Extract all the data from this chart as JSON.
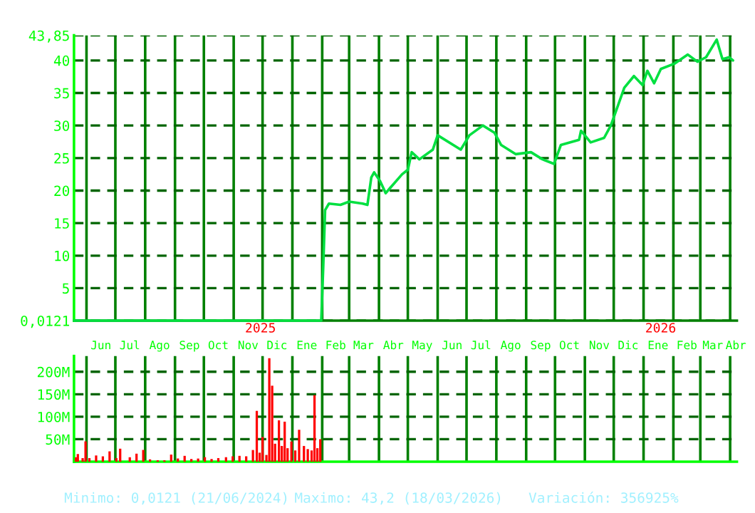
{
  "chart_data": [
    {
      "type": "line",
      "grid": true,
      "xlim": [
        "2024-05-19",
        "2026-04-08"
      ],
      "ylim": [
        0.0121,
        43.85
      ],
      "yticks": [
        {
          "value": 0.0121,
          "label": "0,0121"
        },
        5,
        10,
        15,
        20,
        25,
        30,
        35,
        40,
        {
          "value": 43.85,
          "label": "43,85"
        }
      ],
      "xticks": [
        {
          "value": "2024-06-01",
          "label": null
        },
        {
          "value": "2024-07-01",
          "label": null
        },
        {
          "value": "2024-08-01",
          "label": null
        },
        {
          "value": "2024-09-01",
          "label": null
        },
        {
          "value": "2024-10-01",
          "label": null
        },
        {
          "value": "2024-11-01",
          "label": null
        },
        {
          "value": "2024-12-01",
          "label": null
        },
        {
          "value": "2025-01-01",
          "label": null
        },
        {
          "value": "2025-02-01",
          "label": null
        },
        {
          "value": "2025-03-01",
          "label": null
        },
        {
          "value": "2025-04-01",
          "label": null
        },
        {
          "value": "2025-05-01",
          "label": null
        },
        {
          "value": "2025-06-01",
          "label": null
        },
        {
          "value": "2025-07-01",
          "label": null
        },
        {
          "value": "2025-08-01",
          "label": null
        },
        {
          "value": "2025-09-01",
          "label": null
        },
        {
          "value": "2025-10-01",
          "label": null
        },
        {
          "value": "2025-11-01",
          "label": null
        },
        {
          "value": "2025-12-01",
          "label": null
        },
        {
          "value": "2026-01-01",
          "label": null
        },
        {
          "value": "2026-02-01",
          "label": null
        },
        {
          "value": "2026-03-01",
          "label": null
        },
        {
          "value": "2026-04-01",
          "label": null
        },
        {
          "value": "2024-06-16",
          "label": "Jun"
        },
        {
          "value": "2024-07-16",
          "label": "Jul"
        },
        {
          "value": "2024-08-16",
          "label": "Ago"
        },
        {
          "value": "2024-09-16",
          "label": "Sep"
        },
        {
          "value": "2024-10-16",
          "label": "Oct"
        },
        {
          "value": "2024-11-16",
          "label": "Nov"
        },
        {
          "value": "2024-12-16",
          "label": "Dic"
        },
        {
          "value": "2025-01-16",
          "label": "Ene"
        },
        {
          "value": "2025-02-15",
          "label": "Feb"
        },
        {
          "value": "2025-03-16",
          "label": "Mar"
        },
        {
          "value": "2025-04-16",
          "label": "Abr"
        },
        {
          "value": "2025-05-16",
          "label": "May"
        },
        {
          "value": "2025-06-16",
          "label": "Jun"
        },
        {
          "value": "2025-07-16",
          "label": "Jul"
        },
        {
          "value": "2025-08-16",
          "label": "Ago"
        },
        {
          "value": "2025-09-16",
          "label": "Sep"
        },
        {
          "value": "2025-10-16",
          "label": "Oct"
        },
        {
          "value": "2025-11-16",
          "label": "Nov"
        },
        {
          "value": "2025-12-16",
          "label": "Dic"
        },
        {
          "value": "2026-01-16",
          "label": "Ene"
        },
        {
          "value": "2026-02-15",
          "label": "Feb"
        },
        {
          "value": "2026-03-14",
          "label": "Mar"
        },
        {
          "value": "2026-04-07",
          "label": "Abr"
        }
      ],
      "annotations": [
        "2025",
        "2026"
      ],
      "series": [
        {
          "color": "#00e040",
          "x": [
            "2024-05-19",
            "2025-01-31",
            "2025-02-02",
            "2025-02-04",
            "2025-02-08",
            "2025-02-20",
            "2025-03-01",
            "2025-03-15",
            "2025-03-20",
            "2025-03-24",
            "2025-03-27",
            "2025-04-02",
            "2025-04-08",
            "2025-04-12",
            "2025-04-25",
            "2025-05-01",
            "2025-05-05",
            "2025-05-13",
            "2025-05-27",
            "2025-06-01",
            "2025-06-25",
            "2025-07-04",
            "2025-07-18",
            "2025-07-30",
            "2025-08-06",
            "2025-08-21",
            "2025-09-06",
            "2025-09-18",
            "2025-09-30",
            "2025-10-07",
            "2025-10-26",
            "2025-10-28",
            "2025-11-07",
            "2025-11-21",
            "2025-11-28",
            "2025-12-05",
            "2025-12-12",
            "2025-12-22",
            "2025-12-31",
            "2026-01-05",
            "2026-01-12",
            "2026-01-19",
            "2026-02-02",
            "2026-02-16",
            "2026-02-26",
            "2026-03-07",
            "2026-03-18",
            "2026-03-24",
            "2026-03-31",
            "2026-04-04"
          ],
          "values": [
            0.0121,
            0.0121,
            8.0,
            17.0,
            18.0,
            17.8,
            18.3,
            18.0,
            17.8,
            22.0,
            22.8,
            21.5,
            19.6,
            20.3,
            22.5,
            23.2,
            25.9,
            24.8,
            26.3,
            28.5,
            26.3,
            28.5,
            30.0,
            28.9,
            27.0,
            25.6,
            25.9,
            24.8,
            24.1,
            27.0,
            27.8,
            29.2,
            27.4,
            28.1,
            30.0,
            32.9,
            35.8,
            37.6,
            36.2,
            38.4,
            36.5,
            38.7,
            39.5,
            40.9,
            39.8,
            40.5,
            43.2,
            40.2,
            40.5,
            40.0
          ]
        }
      ]
    },
    {
      "type": "bar",
      "grid": true,
      "tick_labels": "y",
      "color": "#ff0000",
      "xlim": [
        "2024-05-19",
        "2026-04-08"
      ],
      "ylim": [
        0,
        235
      ],
      "yticks": [
        {
          "value": 50,
          "label": "50M"
        },
        {
          "value": 100,
          "label": "100M"
        },
        {
          "value": 150,
          "label": "150M"
        },
        {
          "value": 200,
          "label": "200M"
        }
      ],
      "xticks": [
        {
          "value": "2024-06-01",
          "label": null
        },
        {
          "value": "2024-07-01",
          "label": null
        },
        {
          "value": "2024-08-01",
          "label": null
        },
        {
          "value": "2024-09-01",
          "label": null
        },
        {
          "value": "2024-10-01",
          "label": null
        },
        {
          "value": "2024-11-01",
          "label": null
        },
        {
          "value": "2024-12-01",
          "label": null
        },
        {
          "value": "2025-01-01",
          "label": null
        },
        {
          "value": "2025-02-01",
          "label": null
        },
        {
          "value": "2025-03-01",
          "label": null
        },
        {
          "value": "2025-04-01",
          "label": null
        },
        {
          "value": "2025-05-01",
          "label": null
        },
        {
          "value": "2025-06-01",
          "label": null
        },
        {
          "value": "2025-07-01",
          "label": null
        },
        {
          "value": "2025-08-01",
          "label": null
        },
        {
          "value": "2025-09-01",
          "label": null
        },
        {
          "value": "2025-10-01",
          "label": null
        },
        {
          "value": "2025-11-01",
          "label": null
        },
        {
          "value": "2025-12-01",
          "label": null
        },
        {
          "value": "2026-01-01",
          "label": null
        },
        {
          "value": "2026-02-01",
          "label": null
        },
        {
          "value": "2026-03-01",
          "label": null
        },
        {
          "value": "2026-04-01",
          "label": null
        }
      ],
      "x": [
        "2024-05-21",
        "2024-05-23",
        "2024-05-28",
        "2024-05-31",
        "2024-06-04",
        "2024-06-11",
        "2024-06-18",
        "2024-06-25",
        "2024-07-02",
        "2024-07-06",
        "2024-07-16",
        "2024-07-23",
        "2024-07-30",
        "2024-08-06",
        "2024-08-14",
        "2024-08-21",
        "2024-08-28",
        "2024-09-04",
        "2024-09-11",
        "2024-09-18",
        "2024-09-25",
        "2024-10-02",
        "2024-10-09",
        "2024-10-16",
        "2024-10-24",
        "2024-10-31",
        "2024-11-07",
        "2024-11-14",
        "2024-11-21",
        "2024-11-25",
        "2024-11-28",
        "2024-12-01",
        "2024-12-05",
        "2024-12-08",
        "2024-12-11",
        "2024-12-14",
        "2024-12-18",
        "2024-12-21",
        "2024-12-24",
        "2024-12-27",
        "2024-12-31",
        "2025-01-04",
        "2025-01-08",
        "2025-01-13",
        "2025-01-17",
        "2025-01-21",
        "2025-01-24",
        "2025-01-27",
        "2025-01-30"
      ],
      "values": [
        10,
        17,
        8,
        45,
        8,
        14,
        12,
        23,
        8,
        29,
        10,
        18,
        26,
        5,
        3,
        3,
        16,
        7,
        13,
        6,
        7,
        10,
        6,
        8,
        10,
        12,
        13,
        12,
        26,
        113,
        20,
        55,
        15,
        230,
        169,
        40,
        92,
        35,
        89,
        30,
        45,
        25,
        71,
        35,
        28,
        25,
        148,
        30,
        50
      ],
      "annotations": [
        "Minimo: 0,0121 (21/06/2024)",
        "Maximo: 43,2 (18/03/2026)",
        "Variación: 356925%"
      ]
    }
  ]
}
